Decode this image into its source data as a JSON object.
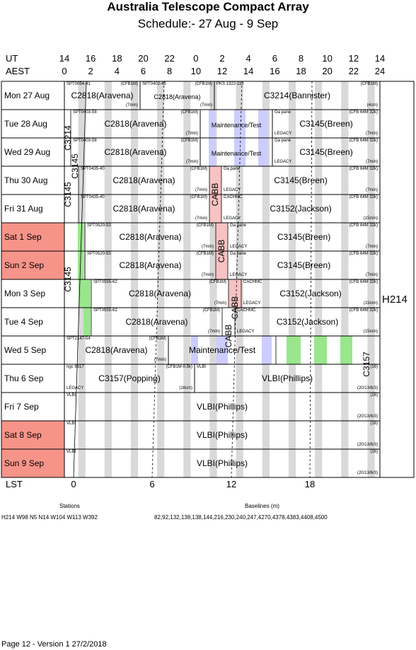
{
  "header": {
    "title": "Australia Telescope Compact Array",
    "subtitle": "Schedule:- 27 Aug - 9  Sep"
  },
  "axes": {
    "ut_label": "UT",
    "aest_label": "AEST",
    "lst_label": "LST",
    "ut_ticks": [
      "14",
      "16",
      "18",
      "20",
      "22",
      "0",
      "2",
      "4",
      "6",
      "8",
      "10",
      "12",
      "14"
    ],
    "aest_ticks": [
      "0",
      "2",
      "4",
      "6",
      "8",
      "10",
      "12",
      "14",
      "16",
      "18",
      "20",
      "22",
      "24"
    ],
    "lst_ticks": [
      "0",
      "6",
      "12",
      "18"
    ]
  },
  "days": [
    {
      "label": "Mon  27 Aug",
      "weekend": false
    },
    {
      "label": "Tue   28 Aug",
      "weekend": false
    },
    {
      "label": "Wed  29 Aug",
      "weekend": false
    },
    {
      "label": "Thu   30 Aug",
      "weekend": false
    },
    {
      "label": "Fri    31 Aug",
      "weekend": false
    },
    {
      "label": "Sat    1  Sep",
      "weekend": true
    },
    {
      "label": "Sun   2  Sep",
      "weekend": true
    },
    {
      "label": "Mon   3  Sep",
      "weekend": false
    },
    {
      "label": "Tue    4  Sep",
      "weekend": false
    },
    {
      "label": "Wed   5  Sep",
      "weekend": false
    },
    {
      "label": "Thu    6  Sep",
      "weekend": false
    },
    {
      "label": "Fri     7  Sep",
      "weekend": false
    },
    {
      "label": "Sat    8  Sep",
      "weekend": true
    },
    {
      "label": "Sun   9  Sep",
      "weekend": true
    }
  ],
  "config": "H214",
  "cells": [
    {
      "row": 0,
      "x0": 91,
      "x1": 198,
      "main": "C2818(Aravena)",
      "tl": "SPT0054-41",
      "tr": "(CFB1M)",
      "br": "(7min)"
    },
    {
      "row": 0,
      "x0": 198,
      "x1": 303,
      "main": "C2818(Aravena)",
      "tl": "SPT0402-45",
      "tr": "(CFB1M)",
      "br": "(7min)",
      "small": true
    },
    {
      "row": 0,
      "x0": 303,
      "x1": 537,
      "main": "C3214(Bannister)",
      "tl": "PKS 1322-110",
      "tr": "(CFB1M)",
      "br": "(4cm)"
    },
    {
      "row": 1,
      "x0": 100,
      "x1": 283,
      "main": "C2818(Aravena)",
      "tl": "SPT0403-58",
      "tr": "(CFB1M)",
      "br": "(7min)"
    },
    {
      "row": 1,
      "x0": 283,
      "x1": 385,
      "main": "Maintenance/Test",
      "small": true
    },
    {
      "row": 1,
      "x0": 385,
      "x1": 537,
      "main": "C3145(Breen)",
      "tl": "Ga pane",
      "tr": "(CFB 64M 32k)",
      "bl": "LEGACY",
      "br": "(7min)"
    },
    {
      "row": 2,
      "x0": 100,
      "x1": 283,
      "main": "C2818(Aravena)",
      "tl": "SPT0403-58",
      "tr": "(CFB1M)",
      "br": "(7min)"
    },
    {
      "row": 2,
      "x0": 283,
      "x1": 385,
      "main": "Maintenance/Test",
      "small": true
    },
    {
      "row": 2,
      "x0": 385,
      "x1": 537,
      "main": "C3145(Breen)",
      "tl": "Ga pane",
      "tr": "(CFB 64M 32k)",
      "bl": "LEGACY",
      "br": "(7min)"
    },
    {
      "row": 3,
      "x0": 111,
      "x1": 296,
      "main": "C2818(Aravena)",
      "tl": "SPT0435-40",
      "tr": "(CFB1M)",
      "br": "(7min)"
    },
    {
      "row": 3,
      "x0": 313,
      "x1": 537,
      "main": "C3145(Breen)",
      "tl": "Ga pane",
      "tr": "(CFB 64M 32k)",
      "bl": "LEGACY",
      "br": "(7min)"
    },
    {
      "row": 4,
      "x0": 111,
      "x1": 296,
      "main": "C2818(Aravena)",
      "tl": "SPT0435-40",
      "tr": "(CFB1M)",
      "br": "(7min)"
    },
    {
      "row": 4,
      "x0": 313,
      "x1": 537,
      "main": "C3152(Jackson)",
      "tl": "CACHMC",
      "tr": "(CFB 64M 32k)",
      "bl": "LEGACY",
      "br": "(15min)"
    },
    {
      "row": 5,
      "x0": 120,
      "x1": 305,
      "main": "C2818(Aravena)",
      "tl": "SPT0520-53",
      "tr": "(CFB1M)",
      "br": "(7min)"
    },
    {
      "row": 5,
      "x0": 322,
      "x1": 537,
      "main": "C3145(Breen)",
      "tl": "Ga pane",
      "tr": "(CFB 64M 32k)",
      "bl": "LEGACY",
      "br": "(7min)"
    },
    {
      "row": 6,
      "x0": 120,
      "x1": 305,
      "main": "C2818(Aravena)",
      "tl": "SPT0520-53",
      "tr": "(CFB1M)",
      "br": "(7min)"
    },
    {
      "row": 6,
      "x0": 322,
      "x1": 537,
      "main": "C3145(Breen)",
      "tl": "Ga pane",
      "tr": "(CFB 64M 32k)",
      "bl": "LEGACY",
      "br": "(7min)"
    },
    {
      "row": 7,
      "x0": 129,
      "x1": 323,
      "main": "C2818(Aravena)",
      "tl": "SPT0555-62",
      "tr": "(CFB1M)",
      "br": "(7min)"
    },
    {
      "row": 7,
      "x0": 341,
      "x1": 537,
      "main": "C3152(Jackson)",
      "tl": "CACHMC",
      "tr": "(CFB 64M 32k)",
      "bl": "LEGACY",
      "br": "(15min)"
    },
    {
      "row": 8,
      "x0": 129,
      "x1": 314,
      "main": "C2818(Aravena)",
      "tl": "SPT0555-62",
      "tr": "(CFB1M)",
      "br": "(7min)"
    },
    {
      "row": 8,
      "x0": 332,
      "x1": 537,
      "main": "C3152(Jackson)",
      "tl": "CACHMC",
      "tr": "(CFB 64M 32k)",
      "bl": "LEGACY",
      "br": "(15min)"
    },
    {
      "row": 9,
      "x0": 91,
      "x1": 238,
      "main": "C2818(Aravena)",
      "tl": "SPT2147-54",
      "tr": "(CFB1M)",
      "br": "(7min)"
    },
    {
      "row": 9,
      "x0": 238,
      "x1": 390,
      "main": "Maintenance/Test"
    },
    {
      "row": 10,
      "x0": 91,
      "x1": 275,
      "main": "C3157(Popping)",
      "tl": "ngc 6617",
      "tr": "(CFB1M-0.5k)",
      "bl": "LEGACY",
      "br": "(16cm)"
    },
    {
      "row": 10,
      "x0": 275,
      "x1": 537,
      "main": "VLBI(Phillips)",
      "tl": "VLBI",
      "tr": "(16)",
      "br": "(20/13/6/3)"
    },
    {
      "row": 11,
      "x0": 91,
      "x1": 537,
      "main": "VLBI(Phillips)",
      "tl": "VLBI",
      "tr": "(16)",
      "br": "(20/13/6/3)"
    },
    {
      "row": 12,
      "x0": 91,
      "x1": 537,
      "main": "VLBI(Phillips)",
      "tl": "VLBI",
      "tr": "(16)",
      "br": "(20/13/6/3)"
    },
    {
      "row": 13,
      "x0": 91,
      "x1": 537,
      "main": "VLBI(Phillips)",
      "tl": "VLBI",
      "tr": "(16)",
      "br": "(20/13/6/3)"
    }
  ],
  "vertical_labels": [
    {
      "text": "C3214",
      "x": 96,
      "row_from": 1,
      "row_to": 2
    },
    {
      "text": "C3145",
      "x": 106,
      "row_from": 2,
      "row_to": 3
    },
    {
      "text": "C3145",
      "x": 96,
      "row_from": 3,
      "row_to": 4
    },
    {
      "text": "CABB",
      "x": 304,
      "row_from": 3,
      "row_to": 4
    },
    {
      "text": "CABB",
      "x": 313,
      "row_from": 5,
      "row_to": 6
    },
    {
      "text": "C3145",
      "x": 96,
      "row_from": 6,
      "row_to": 7
    },
    {
      "text": "CABB",
      "x": 332,
      "row_from": 7,
      "row_to": 8
    },
    {
      "text": "CABB",
      "x": 323,
      "row_from": 8,
      "row_to": 9
    },
    {
      "text": "C3157",
      "x": 518,
      "row_from": 9,
      "row_to": 10
    }
  ],
  "footer": {
    "stations_label": "Stations",
    "stations": "H214   W98 N5 N14 W104 W113 W392",
    "baselines_label": "Baselines (m)",
    "baselines": "82,92,132,138,138,144,216,230,240,247,4270,4378,4383,4408,4500",
    "page": "Page 12 - Version 1  27/2/2018"
  },
  "colors": {
    "weekend": "#f7948a",
    "grey_band": "#d9d9d9",
    "maintenance": "#ccccff",
    "green": "#99e68c",
    "cabb": "#f7c2c2"
  }
}
